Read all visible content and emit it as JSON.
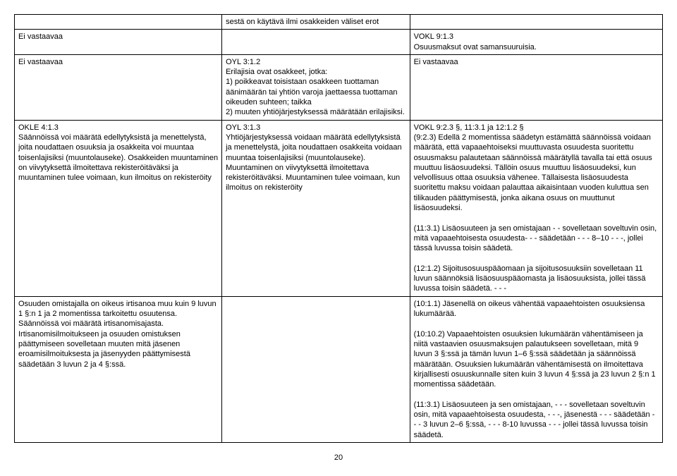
{
  "rows": [
    {
      "c1": "",
      "c2": "sestä on käytävä ilmi osakkeiden väliset erot",
      "c3": ""
    },
    {
      "c1": "Ei vastaavaa",
      "c2": "",
      "c3": "VOKL 9:1.3\nOsuusmaksut ovat samansuuruisia."
    },
    {
      "c1": "Ei vastaavaa",
      "c2": "OYL 3:1.2\nErilajisia ovat osakkeet, jotka:\n1) poikkeavat toisistaan osakkeen tuottaman äänimäärän tai yhtiön varoja jaettaessa tuottaman oikeuden suhteen; taikka\n2) muuten yhtiöjärjestyksessä määrätään erilajisiksi.",
      "c3": "Ei vastaavaa"
    },
    {
      "c1": "OKLE 4:1.3\nSäännöissä voi määrätä edellytyksistä ja menettelystä, joita noudattaen osuuksia ja osakkeita voi muuntaa toisenlajisiksi (muuntolauseke). Osakkeiden muuntaminen on viivytyksettä ilmoitettava rekisteröitäväksi ja muuntaminen tulee voimaan, kun ilmoitus on rekisteröity",
      "c2": "OYL 3:1.3\nYhtiöjärjestyksessä voidaan määrätä edellytyksistä ja menettelystä, joita noudattaen osakkeita voidaan muuntaa toisenlajisiksi (muuntolauseke). Muuntaminen on viivytyksettä ilmoitettava rekisteröitäväksi. Muuntaminen tulee voimaan, kun ilmoitus on rekisteröity",
      "c3": "VOKL 9:2.3 §, 11:3.1 ja 12:1.2 §\n(9:2.3) Edellä 2 momentissa säädetyn estämättä säännöissä voidaan määrätä, että vapaaehtoiseksi muuttuvasta osuudesta suoritettu osuusmaksu palautetaan säännöissä määrätyllä tavalla tai että osuus muuttuu lisäosuudeksi. Tällöin osuus muuttuu lisäosuudeksi, kun velvollisuus ottaa osuuksia vähenee. Tällaisesta lisäosuudesta suoritettu maksu voidaan palauttaa aikaisintaan vuoden kuluttua sen tilikauden päättymisestä, jonka aikana osuus on muuttunut lisäosuudeksi.\n\n(11:3.1) Lisäosuuteen ja sen omistajaan - - sovelletaan soveltuvin osin, mitä vapaaehtoisesta osuudesta- - - säädetään - - - 8–10 - - -, jollei tässä luvussa toisin säädetä.\n\n(12:1.2) Sijoitusosuuspääomaan ja sijoitusosuuksiin sovelletaan 11 luvun säännöksiä lisäosuuspääomasta ja lisäosuuksista, jollei tässä luvussa toisin säädetä. - - -"
    },
    {
      "c1": "Osuuden omistajalla on oikeus irtisanoa muu kuin 9 luvun 1 §:n 1 ja 2 momentissa tarkoitettu osuutensa. Säännöissä voi määrätä irtisanomisajasta. Irtisanomisilmoitukseen ja osuuden omistuksen päättymiseen sovelletaan muuten mitä jäsenen eroamisilmoituksesta ja jäsenyyden päättymisestä säädetään 3 luvun 2 ja 4 §:ssä.",
      "c2": "",
      "c3": "(10:1.1) Jäsenellä on oikeus vähentää vapaaehtoisten osuuksiensa lukumäärää.\n\n(10:10.2) Vapaaehtoisten osuuksien lukumäärän vähentämiseen ja niitä vastaavien osuusmaksujen palautukseen sovelletaan, mitä 9 luvun 3 §:ssä ja tämän luvun 1–6 §:ssä säädetään ja säännöissä määrätään. Osuuksien lukumäärän vähentämisestä on ilmoitettava kirjallisesti osuuskunnalle siten kuin 3 luvun 4 §:ssä ja 23 luvun 2 §:n 1 momentissa säädetään.\n\n(11:3.1) Lisäosuuteen ja sen omistajaan, - - - sovelletaan soveltuvin osin, mitä vapaaehtoisesta osuudesta, - - -, jäsenestä - - - säädetään - - - 3 luvun 2–6 §:ssä, - - - 8-10 luvussa - - - jollei tässä luvussa toisin säädetä."
    }
  ],
  "page_number": "20"
}
